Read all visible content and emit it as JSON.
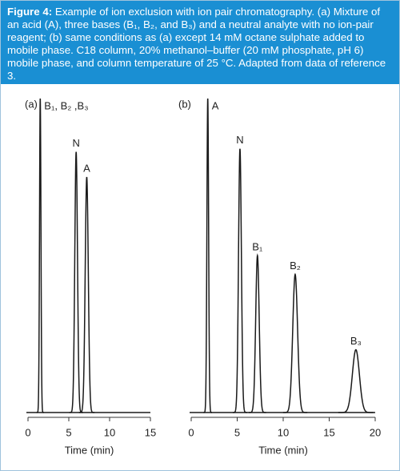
{
  "caption": {
    "label": "Figure 4:",
    "text": "Example of ion exclusion with ion pair chromatography. (a) Mixture of an acid (A), three bases (B₁, B₂, and B₃) and a neutral analyte with no ion-pair reagent; (b) same conditions as (a) except 14 mM octane sulphate added to mobile phase. C18 column, 20% methanol–buffer (20 mM phosphate, pH 6) mobile phase, and column temperature of 25 °C. Adapted from data of reference 3."
  },
  "chart_data": [
    {
      "type": "chromatogram",
      "panel_label": "(a)",
      "x_label": "Time (min)",
      "xlim": [
        0,
        15
      ],
      "xticks": [
        0,
        5,
        10,
        15
      ],
      "ylim": [
        0,
        100
      ],
      "color": "#1a1a1a",
      "peaks": [
        {
          "label": "B₁, B₂ ,B₃",
          "x": 1.5,
          "height": 100
        },
        {
          "label": "N",
          "x": 5.9,
          "height": 83
        },
        {
          "label": "A",
          "x": 7.2,
          "height": 75
        }
      ]
    },
    {
      "type": "chromatogram",
      "panel_label": "(b)",
      "x_label": "Time (min)",
      "xlim": [
        0,
        20
      ],
      "xticks": [
        0,
        5,
        10,
        15,
        20
      ],
      "ylim": [
        0,
        100
      ],
      "color": "#1a1a1a",
      "peaks": [
        {
          "label": "A",
          "x": 1.8,
          "height": 100
        },
        {
          "label": "N",
          "x": 5.3,
          "height": 84
        },
        {
          "label": "B₁",
          "x": 7.2,
          "height": 50
        },
        {
          "label": "B₂",
          "x": 11.3,
          "height": 44
        },
        {
          "label": "B₃",
          "x": 17.9,
          "height": 20
        }
      ]
    }
  ]
}
